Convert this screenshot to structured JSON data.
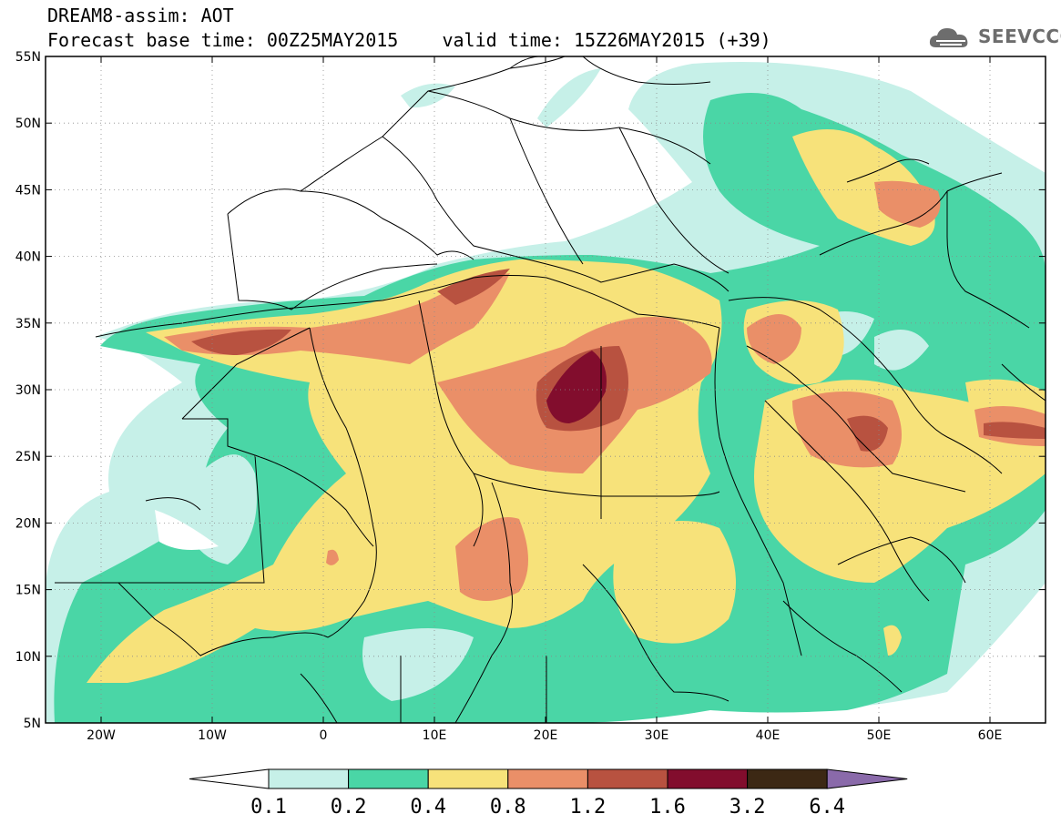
{
  "header": {
    "line1": "DREAM8-assim: AOT",
    "line2": "Forecast base time: 00Z25MAY2015    valid time: 15Z26MAY2015 (+39)"
  },
  "logo": {
    "text": "SEEVCCC",
    "icon": "cloud-icon"
  },
  "map": {
    "lon_range": [
      -25,
      65
    ],
    "lat_range": [
      5,
      55
    ],
    "x_ticks": [
      "20W",
      "10W",
      "0",
      "10E",
      "20E",
      "30E",
      "40E",
      "50E",
      "60E"
    ],
    "y_ticks": [
      "55N",
      "50N",
      "45N",
      "40N",
      "35N",
      "30N",
      "25N",
      "20N",
      "15N",
      "10N",
      "5N"
    ]
  },
  "colorbar": {
    "labels": [
      "0.1",
      "0.2",
      "0.4",
      "0.8",
      "1.2",
      "1.6",
      "3.2",
      "6.4"
    ],
    "colors": [
      "#c6f0e8",
      "#4ad6a6",
      "#f7e27a",
      "#ea8f68",
      "#b85240",
      "#820d2d",
      "#3c2814",
      "#8a6aaa"
    ],
    "under_color": "#ffffff"
  },
  "colors": {
    "c1": "#c6f0e8",
    "c2": "#4ad6a6",
    "c3": "#f7e27a",
    "c4": "#ea8f68",
    "c5": "#b85240",
    "c6": "#820d2d",
    "border": "#000000"
  }
}
